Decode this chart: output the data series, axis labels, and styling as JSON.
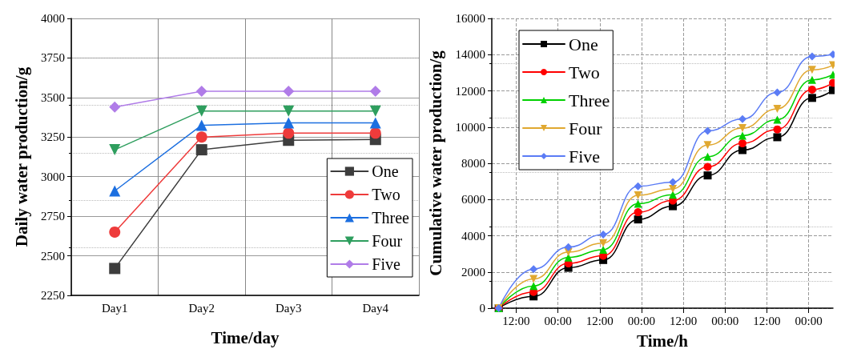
{
  "chart_data": [
    {
      "type": "line",
      "xlabel": "Time/day",
      "ylabel": "Daily water production/g",
      "categories": [
        "Day1",
        "Day2",
        "Day3",
        "Day4"
      ],
      "series": [
        {
          "name": "One",
          "color": "#3d3d3d",
          "marker": "square",
          "values": [
            2420,
            3170,
            3230,
            3235
          ]
        },
        {
          "name": "Two",
          "color": "#ee3b3b",
          "marker": "circle",
          "values": [
            2650,
            3250,
            3275,
            3275
          ]
        },
        {
          "name": "Three",
          "color": "#1c6fe0",
          "marker": "triangle",
          "values": [
            2910,
            3325,
            3340,
            3340
          ]
        },
        {
          "name": "Four",
          "color": "#2e9e5e",
          "marker": "triangle-down",
          "values": [
            3170,
            3415,
            3415,
            3415
          ]
        },
        {
          "name": "Five",
          "color": "#b07ce8",
          "marker": "diamond",
          "values": [
            3440,
            3540,
            3540,
            3540
          ]
        }
      ],
      "ylim": [
        2250,
        4000
      ],
      "yticks": [
        2250,
        2500,
        2750,
        3000,
        3250,
        3500,
        3750,
        4000
      ],
      "grid": true,
      "legend": "right"
    },
    {
      "type": "line",
      "xlabel": "Time/h",
      "ylabel": "Cumulative water production/g",
      "x": [
        "--01-01T07:00",
        "--01-01T17:00",
        "--01-02T03:00",
        "--01-02T13:00",
        "--01-02T23:00",
        "--01-03T09:00",
        "--01-03T19:00",
        "--01-04T05:00",
        "--01-04T15:00",
        "--01-05T01:00",
        "--01-05T07:00"
      ],
      "series": [
        {
          "name": "One",
          "color": "#000000",
          "marker": "square",
          "values": [
            0,
            650,
            2230,
            2660,
            4900,
            5630,
            7330,
            8730,
            9440,
            11610,
            12040
          ]
        },
        {
          "name": "Two",
          "color": "#ff0000",
          "marker": "circle",
          "values": [
            0,
            900,
            2470,
            2900,
            5300,
            5940,
            7800,
            9100,
            9870,
            12070,
            12440
          ]
        },
        {
          "name": "Three",
          "color": "#00d000",
          "marker": "triangle",
          "values": [
            0,
            1230,
            2800,
            3230,
            5770,
            6260,
            8370,
            9530,
            10410,
            12610,
            12900
          ]
        },
        {
          "name": "Four",
          "color": "#e0a830",
          "marker": "triangle-down",
          "values": [
            0,
            1610,
            3090,
            3590,
            6230,
            6590,
            9010,
            9940,
            11010,
            13160,
            13410
          ]
        },
        {
          "name": "Five",
          "color": "#5b7cf5",
          "marker": "diamond",
          "values": [
            0,
            2160,
            3370,
            4070,
            6730,
            6960,
            9790,
            10440,
            11910,
            13900,
            14010
          ]
        }
      ],
      "xlim": [
        "--01-01T05:00",
        "--01-05T07:00"
      ],
      "xticks": [
        {
          "value": "--01-01T12:00",
          "label": "12:00"
        },
        {
          "value": "--01-02T00:00",
          "label": "00:00"
        },
        {
          "value": "--01-02T12:00",
          "label": "12:00"
        },
        {
          "value": "--01-03T00:00",
          "label": "00:00"
        },
        {
          "value": "--01-03T12:00",
          "label": "12:00"
        },
        {
          "value": "--01-04T00:00",
          "label": "00:00"
        },
        {
          "value": "--01-04T12:00",
          "label": "12:00"
        },
        {
          "value": "--01-05T00:00",
          "label": "00:00"
        }
      ],
      "ylim": [
        0,
        16000
      ],
      "yticks": [
        0,
        2000,
        4000,
        6000,
        8000,
        10000,
        12000,
        14000,
        16000
      ],
      "grid": true,
      "legend": "top left"
    }
  ]
}
